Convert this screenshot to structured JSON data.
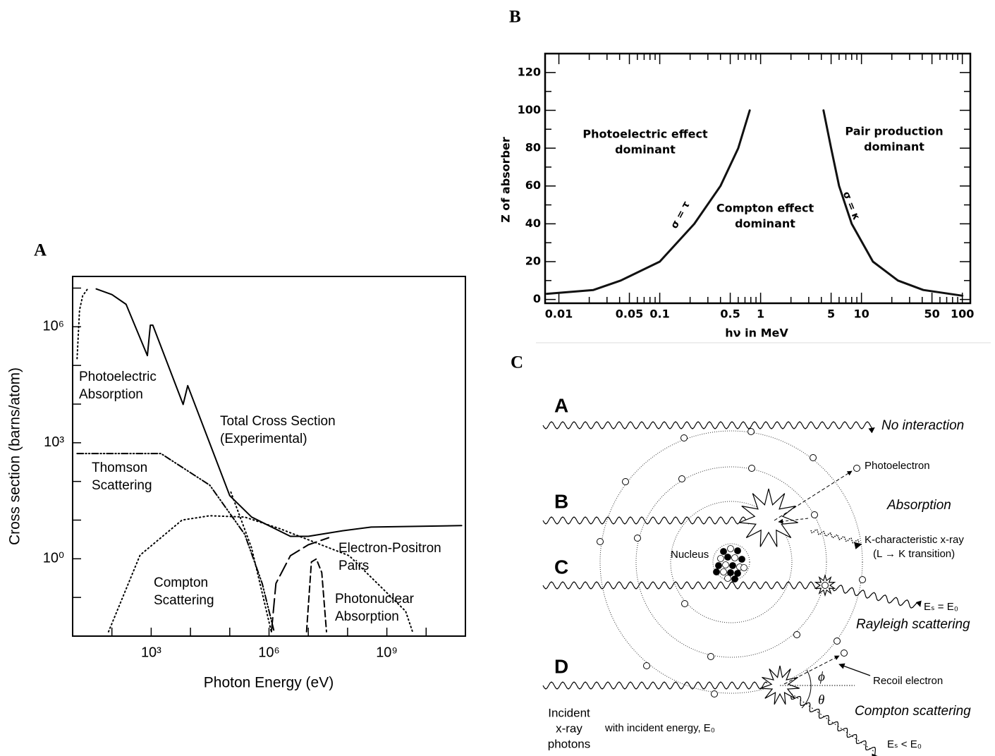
{
  "chart_data": [
    {
      "type": "line",
      "panel": "A",
      "xlabel": "Photon Energy (eV)",
      "ylabel": "Cross section (barns/atom)",
      "xscale": "log",
      "yscale": "log",
      "xlim": [
        10,
        100000000000
      ],
      "ylim": [
        0.01,
        20000000
      ],
      "xticks": [
        {
          "value": 1000,
          "label": "10³"
        },
        {
          "value": 1000000,
          "label": "10⁶"
        },
        {
          "value": 1000000000,
          "label": "10⁹"
        }
      ],
      "xminorticks": [
        100,
        10000,
        100000,
        10000000,
        100000000,
        10000000000
      ],
      "yticks": [
        {
          "value": 1,
          "label": "10⁰"
        },
        {
          "value": 1000,
          "label": "10³"
        },
        {
          "value": 1000000,
          "label": "10⁶"
        }
      ],
      "yminorticks": [
        0.1,
        10,
        100,
        10000,
        100000,
        10000000
      ],
      "series": [
        {
          "name": [
            "Total Cross Section",
            "(Experimental)"
          ],
          "style": "solid",
          "color": "#000000",
          "x": [
            40,
            100,
            230,
            800,
            950,
            1100,
            6500,
            8500,
            100000,
            360000,
            3500000,
            10000000,
            75000000,
            400000000,
            80000000000
          ],
          "values": [
            9500000,
            6800000,
            3800000,
            180000,
            1100000,
            1100000,
            9800,
            30000,
            43,
            12,
            3.8,
            3.8,
            5.3,
            6.6,
            7.2
          ]
        },
        {
          "name": [
            "Photoelectric",
            "Absorption"
          ],
          "style": "dotted",
          "color": "#000000",
          "x": [
            13,
            15,
            18,
            24,
            50000,
            107000,
            360000,
            1150000
          ],
          "values": [
            150000,
            2700000,
            6300000,
            9500000,
            null,
            53,
            1.9,
            0.0126
          ]
        },
        {
          "name": [
            "Thomson",
            "Scattering"
          ],
          "style": "dashdot",
          "color": "#000000",
          "x": [
            13,
            1770,
            31000,
            240000,
            670000,
            1350000
          ],
          "values": [
            526,
            526,
            80,
            4.3,
            0.23,
            0.013
          ]
        },
        {
          "name": [
            "Compton",
            "Scattering"
          ],
          "style": "dotted",
          "color": "#000000",
          "x": [
            82,
            520,
            6100,
            31000,
            240000,
            1900000,
            110000000,
            3000000000,
            4500000000
          ],
          "values": [
            0.013,
            1.24,
            10,
            13,
            12,
            6,
            1.2,
            0.044,
            0.013
          ]
        },
        {
          "name": [
            "Electron-Positron",
            "Pairs"
          ],
          "style": "longdash",
          "color": "#000000",
          "x": [
            1150000,
            1500000,
            3500000,
            10000000,
            33000000
          ],
          "values": [
            0.013,
            0.23,
            1.2,
            2.3,
            3.5
          ]
        },
        {
          "name": [
            "Photonuclear",
            "Absorption"
          ],
          "style": "dashed",
          "color": "#000000",
          "x": [
            9000000,
            12000000,
            16000000,
            22000000,
            29000000
          ],
          "values": [
            0.013,
            0.83,
            0.99,
            0.44,
            0.013
          ]
        }
      ]
    },
    {
      "type": "line",
      "panel": "B",
      "xlabel": "hν in MeV",
      "ylabel": "Z of absorber",
      "xscale": "log",
      "yscale": "linear",
      "xlim": [
        0.0073,
        120
      ],
      "ylim": [
        -2,
        130
      ],
      "xticks": [
        0.01,
        0.05,
        0.1,
        0.5,
        1,
        5,
        10,
        50,
        100
      ],
      "xminorticks": [
        0.02,
        0.03,
        0.04,
        0.06,
        0.07,
        0.08,
        0.09,
        0.2,
        0.3,
        0.4,
        0.6,
        0.7,
        0.8,
        0.9,
        2,
        3,
        4,
        6,
        7,
        8,
        9,
        20,
        30,
        40,
        60,
        70,
        80,
        90
      ],
      "yticks": [
        0,
        20,
        40,
        60,
        80,
        100,
        120
      ],
      "yminorticks": [
        10,
        30,
        50,
        70,
        90,
        110
      ],
      "series": [
        {
          "name": [
            "σ = τ"
          ],
          "style": "solid",
          "color": "#111111",
          "x": [
            0.0076,
            0.022,
            0.041,
            0.1,
            0.22,
            0.4,
            0.6,
            0.78
          ],
          "values": [
            3,
            5,
            10,
            20,
            40,
            60,
            80,
            100
          ]
        },
        {
          "name": [
            "σ = κ"
          ],
          "style": "solid",
          "color": "#111111",
          "x": [
            4.2,
            5,
            6,
            8,
            13,
            23,
            41,
            100
          ],
          "values": [
            100,
            80,
            60,
            40,
            20,
            10,
            5,
            2
          ]
        }
      ],
      "annotations": [
        [
          "Photoelectric effect",
          "dominant"
        ],
        [
          "Compton effect",
          "dominant"
        ],
        [
          "Pair production",
          "dominant"
        ]
      ]
    }
  ],
  "diagram": {
    "panel": "C",
    "rows": [
      {
        "letter": "A",
        "label": "No interaction"
      },
      {
        "letter": "B",
        "label": "Absorption"
      },
      {
        "letter": "C",
        "label": "Rayleigh scattering"
      },
      {
        "letter": "D",
        "label": "Compton scattering"
      }
    ],
    "labels": {
      "photoelectron": "Photoelectron",
      "k_xray": [
        "K-characteristic x-ray",
        "(L → K transition)"
      ],
      "nucleus": "Nucleus",
      "rayleigh_energy": "Eₛ = E₀",
      "recoil": "Recoil electron",
      "compton_energy": "Eₛ < E₀",
      "incident": [
        "Incident",
        "x-ray",
        "photons"
      ],
      "incident_energy": "with incident energy, E₀",
      "phi": "ϕ",
      "theta": "θ"
    }
  }
}
